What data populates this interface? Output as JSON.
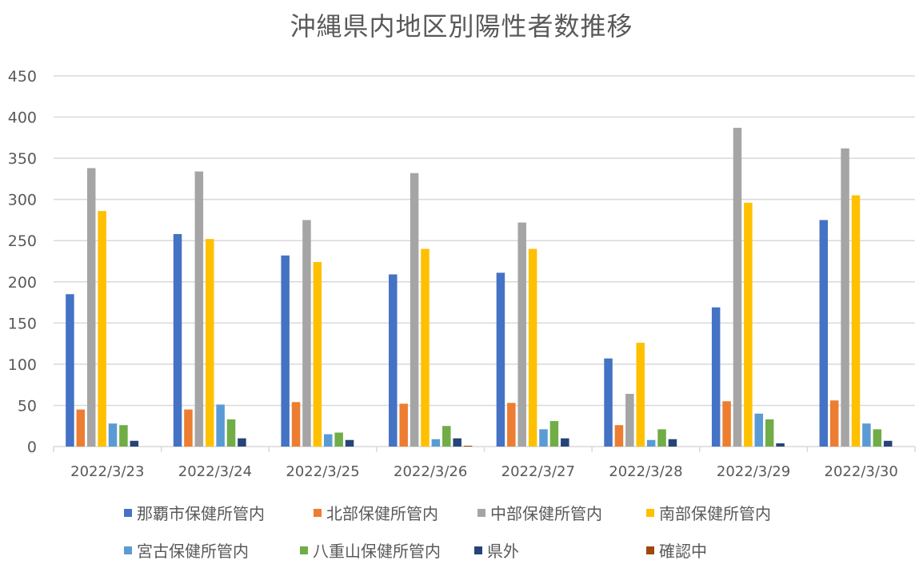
{
  "chart_data": {
    "type": "bar",
    "title": "沖縄県内地区別陽性者数推移",
    "xlabel": "",
    "ylabel": "",
    "ylim": [
      0,
      450
    ],
    "yticks": [
      0,
      50,
      100,
      150,
      200,
      250,
      300,
      350,
      400,
      450
    ],
    "grid": true,
    "legend_position": "bottom",
    "categories": [
      "2022/3/23",
      "2022/3/24",
      "2022/3/25",
      "2022/3/26",
      "2022/3/27",
      "2022/3/28",
      "2022/3/29",
      "2022/3/30"
    ],
    "series": [
      {
        "name": "那覇市保健所管内",
        "color": "#4472C4",
        "values": [
          185,
          258,
          232,
          209,
          211,
          107,
          169,
          275
        ]
      },
      {
        "name": "北部保健所管内",
        "color": "#ED7D31",
        "values": [
          45,
          45,
          54,
          52,
          53,
          26,
          55,
          56
        ]
      },
      {
        "name": "中部保健所管内",
        "color": "#A5A5A5",
        "values": [
          338,
          334,
          275,
          332,
          272,
          64,
          387,
          362
        ]
      },
      {
        "name": "南部保健所管内",
        "color": "#FFC000",
        "values": [
          286,
          252,
          224,
          240,
          240,
          126,
          296,
          305
        ]
      },
      {
        "name": "宮古保健所管内",
        "color": "#5B9BD5",
        "values": [
          28,
          51,
          15,
          9,
          21,
          8,
          40,
          28
        ]
      },
      {
        "name": "八重山保健所管内",
        "color": "#70AD47",
        "values": [
          26,
          33,
          17,
          25,
          31,
          21,
          33,
          21
        ]
      },
      {
        "name": "県外",
        "color": "#264478",
        "values": [
          7,
          10,
          8,
          10,
          10,
          9,
          4,
          7
        ]
      },
      {
        "name": "確認中",
        "color": "#9E480E",
        "values": [
          0,
          0,
          0,
          1,
          0,
          0,
          0,
          0
        ]
      }
    ]
  }
}
